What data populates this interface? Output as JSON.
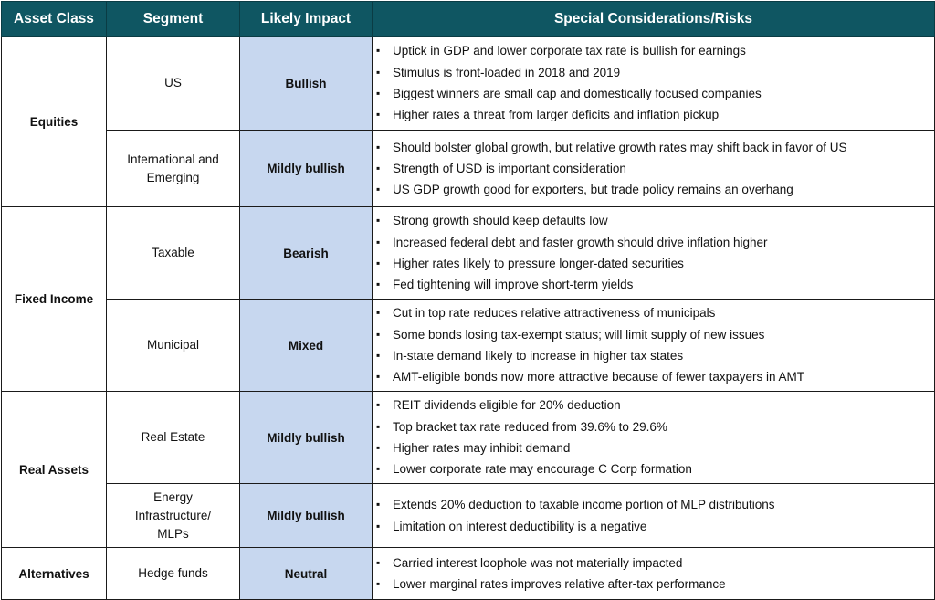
{
  "header": {
    "asset_class": "Asset Class",
    "segment": "Segment",
    "impact": "Likely Impact",
    "risks": "Special Considerations/Risks"
  },
  "asset_classes": [
    {
      "name": "Equities",
      "segments": [
        {
          "name": "US",
          "impact": "Bullish",
          "risks": [
            "Uptick in GDP and lower corporate tax rate is bullish for earnings",
            "Stimulus is front-loaded in 2018 and 2019",
            "Biggest winners are small cap and domestically focused companies",
            "Higher rates a threat from larger deficits and inflation pickup"
          ]
        },
        {
          "name": [
            "International and",
            "Emerging"
          ],
          "impact": "Mildly bullish",
          "risks": [
            "Should bolster global growth, but relative growth rates may shift back in favor of US",
            "Strength of USD is important consideration",
            "US GDP growth good for exporters, but trade policy remains an overhang"
          ]
        }
      ]
    },
    {
      "name": "Fixed Income",
      "segments": [
        {
          "name": "Taxable",
          "impact": "Bearish",
          "risks": [
            "Strong growth should keep defaults low",
            "Increased federal debt and faster growth should drive inflation higher",
            "Higher rates likely to pressure longer-dated securities",
            "Fed tightening will improve short-term yields"
          ]
        },
        {
          "name": "Municipal",
          "impact": "Mixed",
          "risks": [
            "Cut in top rate reduces relative attractiveness of municipals",
            " Some bonds losing tax-exempt status; will limit supply of new issues",
            "In-state demand likely to increase in higher tax states",
            "AMT-eligible bonds now more attractive because of fewer taxpayers in AMT"
          ]
        }
      ]
    },
    {
      "name": "Real Assets",
      "segments": [
        {
          "name": "Real Estate",
          "impact": "Mildly bullish",
          "risks": [
            "REIT dividends eligible for 20% deduction",
            "Top bracket tax rate reduced from 39.6% to 29.6%",
            "Higher rates may inhibit demand",
            "Lower corporate rate may encourage C Corp formation"
          ]
        },
        {
          "name": [
            "Energy",
            "Infrastructure/",
            "MLPs"
          ],
          "impact": "Mildly bullish",
          "risks": [
            "Extends 20% deduction to taxable income portion of MLP distributions",
            "Limitation on interest deductibility is a negative"
          ]
        }
      ]
    },
    {
      "name": "Alternatives",
      "segments": [
        {
          "name": "Hedge funds",
          "impact": "Neutral",
          "risks": [
            "Carried interest loophole was not materially impacted",
            "Lower marginal rates improves relative after-tax performance"
          ]
        }
      ]
    }
  ],
  "colors": {
    "header_bg": "#0f5662",
    "header_text": "#ffffff",
    "impact_bg": "#c7d7ef"
  },
  "icons": {
    "bullet": "square-bullet-icon"
  }
}
